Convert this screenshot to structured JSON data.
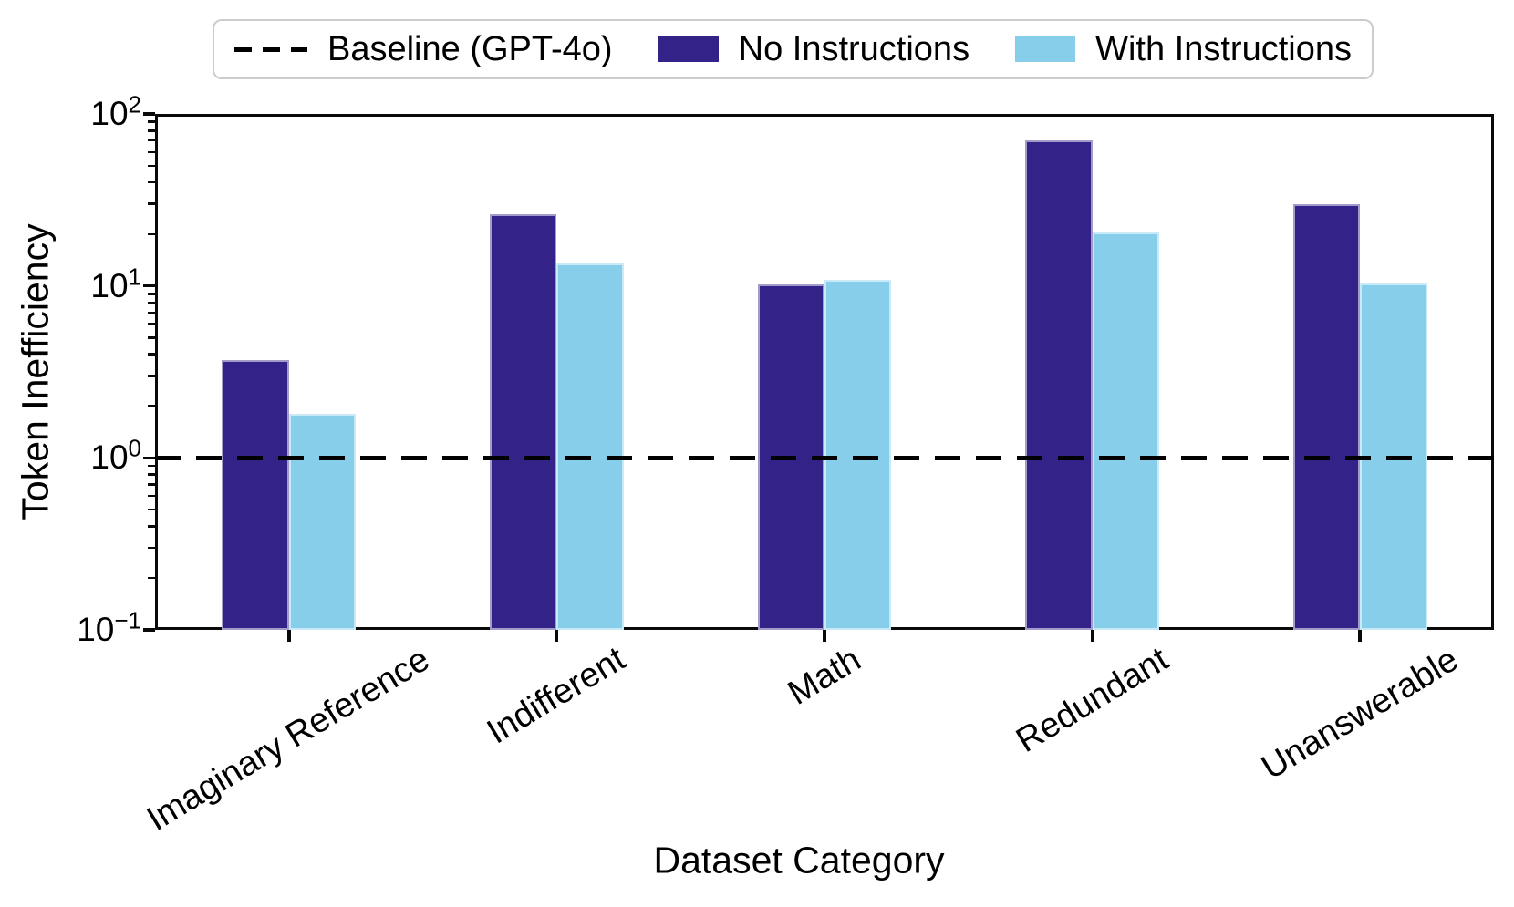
{
  "chart_data": {
    "type": "bar",
    "title": "",
    "xlabel": "Dataset Category",
    "ylabel": "Token Inefficiency",
    "yscale": "log",
    "ylim": [
      0.1,
      100
    ],
    "grid": false,
    "legend_position": "top-outside",
    "categories": [
      "Imaginary Reference",
      "Indifferent",
      "Math",
      "Redundant",
      "Unanswerable"
    ],
    "series": [
      {
        "name": "No Instructions",
        "color": "#332288",
        "values": [
          3.7,
          26,
          10.2,
          70,
          30
        ]
      },
      {
        "name": "With Instructions",
        "color": "#87CEEB",
        "values": [
          1.8,
          13.5,
          10.9,
          20.4,
          10.3
        ]
      }
    ],
    "baseline": {
      "label": "Baseline (GPT-4o)",
      "value": 1.0,
      "style": "dashed",
      "color": "#000000"
    },
    "y_ticks": [
      {
        "value": 100,
        "base": "10",
        "exp": "2"
      },
      {
        "value": 10,
        "base": "10",
        "exp": "1"
      },
      {
        "value": 1,
        "base": "10",
        "exp": "0"
      },
      {
        "value": 0.1,
        "base": "10",
        "exp": "−1"
      }
    ]
  }
}
